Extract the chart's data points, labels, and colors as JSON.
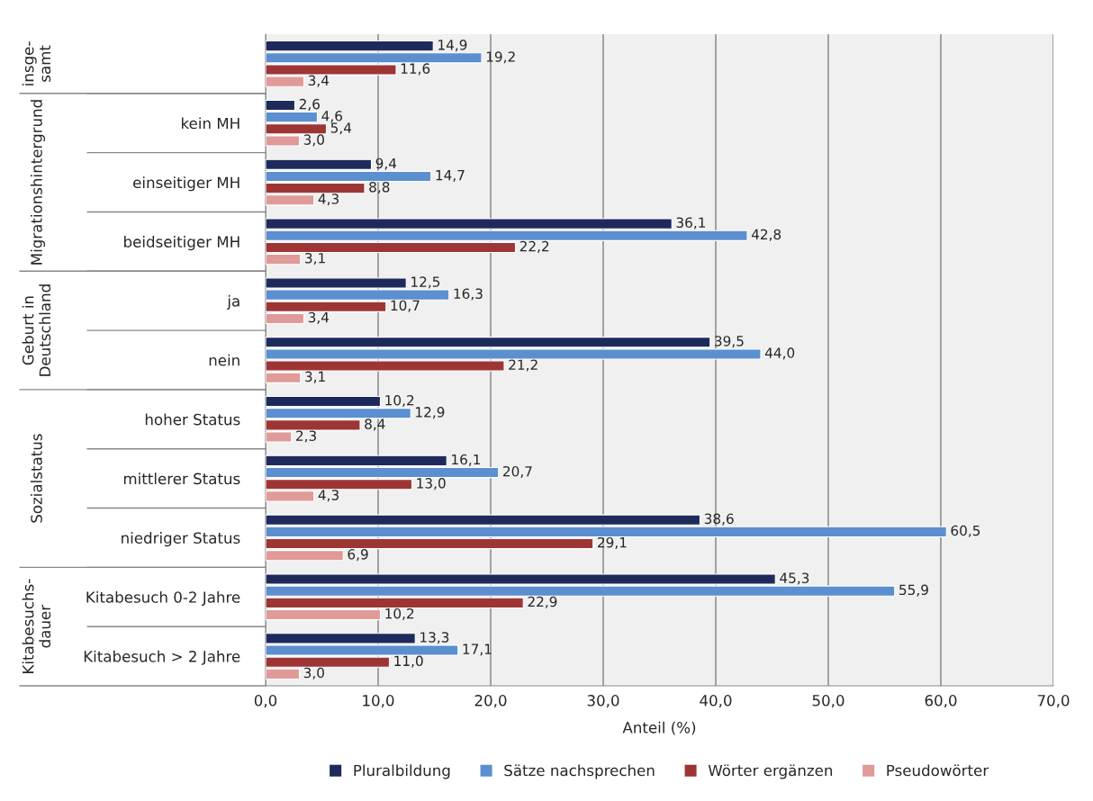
{
  "chart_data": {
    "type": "bar",
    "orientation": "horizontal",
    "xlabel": "Anteil (%)",
    "categories": [
      null,
      "kein MH",
      "einseitiger MH",
      "beidseitiger MH",
      "ja",
      "nein",
      "hoher Status",
      "mittlerer Status",
      "niedriger Status",
      "Kitabesuch 0-2 Jahre",
      "Kitabesuch > 2 Jahre"
    ],
    "series": [
      {
        "name": "Pluralbildung",
        "color": "#1f2a5c",
        "values": [
          14.9,
          2.6,
          9.4,
          36.1,
          12.5,
          39.5,
          10.2,
          16.1,
          38.6,
          45.3,
          13.3
        ],
        "value_labels": [
          "14,9",
          "2,6",
          "9,4",
          "36,1",
          "12,5",
          "39,5",
          "10,2",
          "16,1",
          "38,6",
          "45,3",
          "13,3"
        ]
      },
      {
        "name": "Sätze nachsprechen",
        "color": "#5b8fd0",
        "values": [
          19.2,
          4.6,
          14.7,
          42.8,
          16.3,
          44.0,
          12.9,
          20.7,
          60.5,
          55.9,
          17.1
        ],
        "value_labels": [
          "19,2",
          "4,6",
          "14,7",
          "42,8",
          "16,3",
          "44,0",
          "12,9",
          "20,7",
          "60,5",
          "55,9",
          "17,1"
        ]
      },
      {
        "name": "Wörter ergänzen",
        "color": "#9e3535",
        "values": [
          11.6,
          5.4,
          8.8,
          22.2,
          10.7,
          21.2,
          8.4,
          13.0,
          29.1,
          22.9,
          11.0
        ],
        "value_labels": [
          "11,6",
          "5,4",
          "8,8",
          "22,2",
          "10,7",
          "21,2",
          "8,4",
          "13,0",
          "29,1",
          "22,9",
          "11,0"
        ]
      },
      {
        "name": "Pseudowörter",
        "color": "#e09a98",
        "values": [
          3.4,
          3.0,
          4.3,
          3.1,
          3.4,
          3.1,
          2.3,
          4.3,
          6.9,
          10.2,
          3.0
        ],
        "value_labels": [
          "3,4",
          "3,0",
          "4,3",
          "3,1",
          "3,4",
          "3,1",
          "2,3",
          "4,3",
          "6,9",
          "10,2",
          "3,0"
        ]
      }
    ],
    "annotations": [
      "insge-\nsamt",
      "Migrationshintergrund",
      "Geburt in\nDeutschland",
      "Sozialstatus",
      "Kitabesuchs-\ndauer"
    ],
    "xlim": [
      0,
      70
    ],
    "xticks": [
      {
        "value": 0,
        "label": "0,0"
      },
      {
        "value": 10,
        "label": "10,0"
      },
      {
        "value": 20,
        "label": "20,0"
      },
      {
        "value": 30,
        "label": "30,0"
      },
      {
        "value": 40,
        "label": "40,0"
      },
      {
        "value": 50,
        "label": "50,0"
      },
      {
        "value": 60,
        "label": "60,0"
      },
      {
        "value": 70,
        "label": "70,0"
      }
    ],
    "grid": "x",
    "legend": "bottom"
  }
}
